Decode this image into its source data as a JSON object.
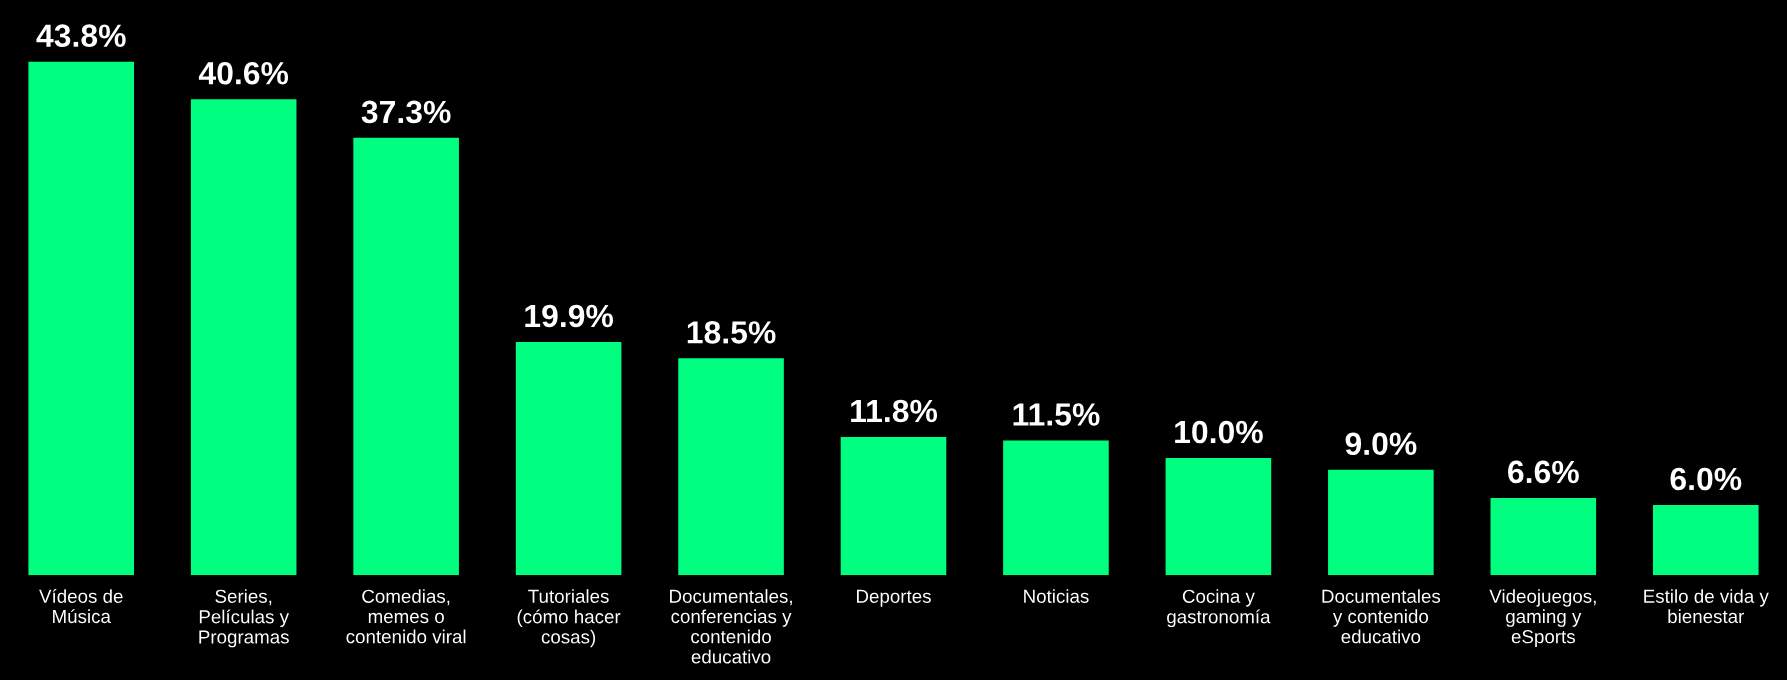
{
  "chart_data": {
    "type": "bar",
    "categories": [
      "Vídeos de\nMúsica",
      "Series,\nPelículas y\nProgramas",
      "Comedias,\nmemes o\ncontenido viral",
      "Tutoriales\n(cómo hacer\ncosas)",
      "Documentales,\nconferencias y\ncontenido\neducativo",
      "Deportes",
      "Noticias",
      "Cocina y\ngastronomía",
      "Documentales\ny contenido\neducativo",
      "Videojuegos,\ngaming y\neSports",
      "Estilo de vida y\nbienestar"
    ],
    "values": [
      43.8,
      40.6,
      37.3,
      19.9,
      18.5,
      11.8,
      11.5,
      10.0,
      9.0,
      6.6,
      6.0
    ],
    "value_labels": [
      "43.8%",
      "40.6%",
      "37.3%",
      "19.9%",
      "18.5%",
      "11.8%",
      "11.5%",
      "10.0%",
      "9.0%",
      "6.6%",
      "6.0%"
    ],
    "color": "#00ff80",
    "tick_labels": "x"
  }
}
